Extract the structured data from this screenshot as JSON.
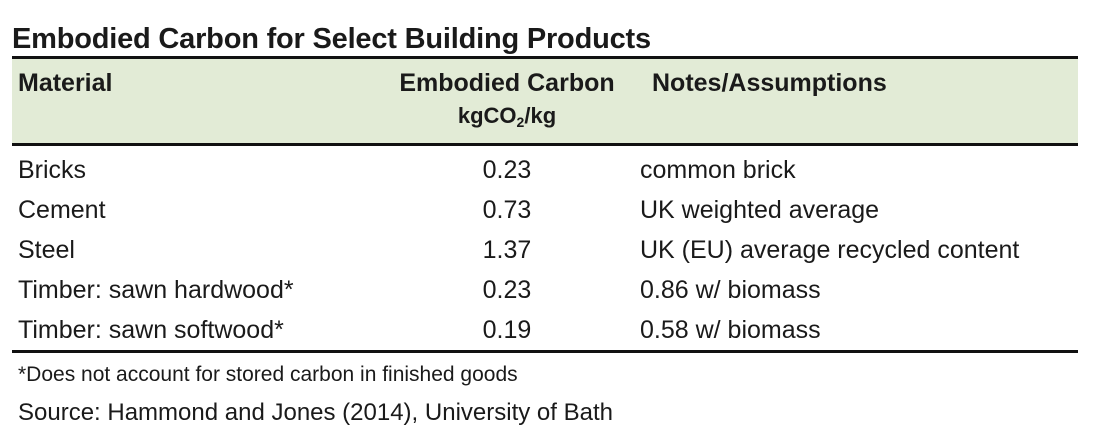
{
  "title": "Embodied Carbon for Select Building Products",
  "header": {
    "material": "Material",
    "carbon": "Embodied Carbon",
    "unit_prefix": "kgCO",
    "unit_sub": "2",
    "unit_suffix": "/kg",
    "notes": "Notes/Assumptions"
  },
  "rows": [
    {
      "material": "Bricks",
      "value": "0.23",
      "notes": "common brick"
    },
    {
      "material": "Cement",
      "value": "0.73",
      "notes": "UK weighted average"
    },
    {
      "material": "Steel",
      "value": "1.37",
      "notes": "UK (EU) average recycled content"
    },
    {
      "material": "Timber: sawn hardwood*",
      "value": "0.23",
      "notes": "0.86 w/ biomass"
    },
    {
      "material": "Timber: sawn softwood*",
      "value": "0.19",
      "notes": "0.58 w/ biomass"
    }
  ],
  "footnote": "*Does not account for stored carbon in finished goods",
  "source": "Source: Hammond and Jones (2014), University of Bath",
  "colors": {
    "header_background": "#e2ebd6",
    "rule": "#111111"
  }
}
